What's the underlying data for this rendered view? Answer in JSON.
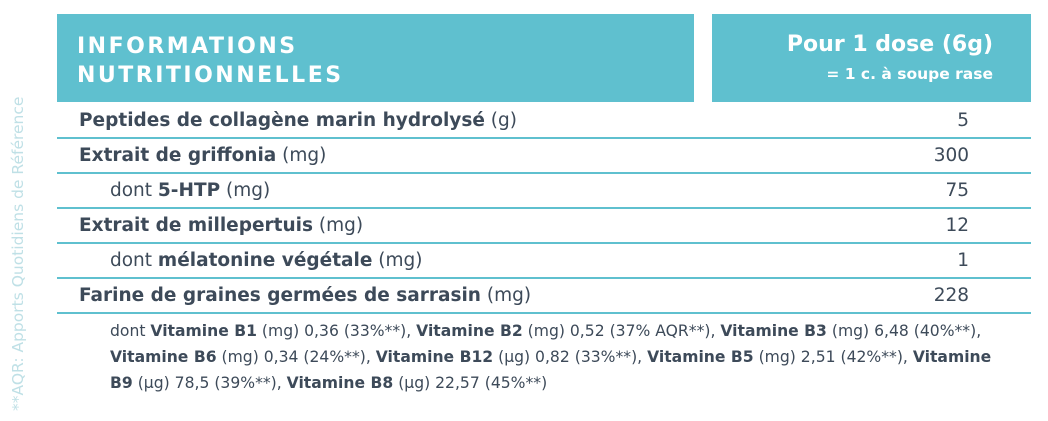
{
  "side_note": "**AQR: Apports Quotidiens de Référence",
  "header": {
    "title_line1": "INFORMATIONS",
    "title_line2": "NUTRITIONNELLES",
    "dose_line1": "Pour 1 dose (6g)",
    "dose_line2": "= 1 c. à soupe rase"
  },
  "rows": [
    {
      "prefix": "",
      "name": "Peptides de collagène marin hydrolysé",
      "unit": " (g)",
      "value": "5"
    },
    {
      "prefix": "",
      "name": "Extrait de griffonia",
      "unit": " (mg)",
      "value": "300"
    },
    {
      "prefix": "dont ",
      "name": "5-HTP",
      "unit": " (mg)",
      "value": "75"
    },
    {
      "prefix": "",
      "name": "Extrait de millepertuis",
      "unit": " (mg)",
      "value": "12"
    },
    {
      "prefix": "dont ",
      "name": "mélatonine végétale",
      "unit": " (mg)",
      "value": "1"
    },
    {
      "prefix": "",
      "name": "Farine de graines germées de sarrasin",
      "unit": " (mg)",
      "value": "228"
    }
  ],
  "vitamins": {
    "prefix": "dont ",
    "items": [
      {
        "name": "Vitamine B1",
        "detail": " (mg) 0,36 (33%**), "
      },
      {
        "name": "Vitamine B2",
        "detail": " (mg) 0,52 (37% AQR**), "
      },
      {
        "name": "Vitamine B3",
        "detail": " (mg) 6,48 (40%**), "
      },
      {
        "name": "Vitamine B6",
        "detail": " (mg) 0,34 (24%**), "
      },
      {
        "name": "Vitamine B12",
        "detail": " (µg) 0,82 (33%**), "
      },
      {
        "name": "Vitamine B5",
        "detail": " (mg) 2,51 (42%**), "
      },
      {
        "name": "Vitamine B9",
        "detail": " (µg) 78,5 (39%**), "
      },
      {
        "name": "Vitamine B8",
        "detail": " (µg) 22,57 (45%**)"
      }
    ]
  }
}
